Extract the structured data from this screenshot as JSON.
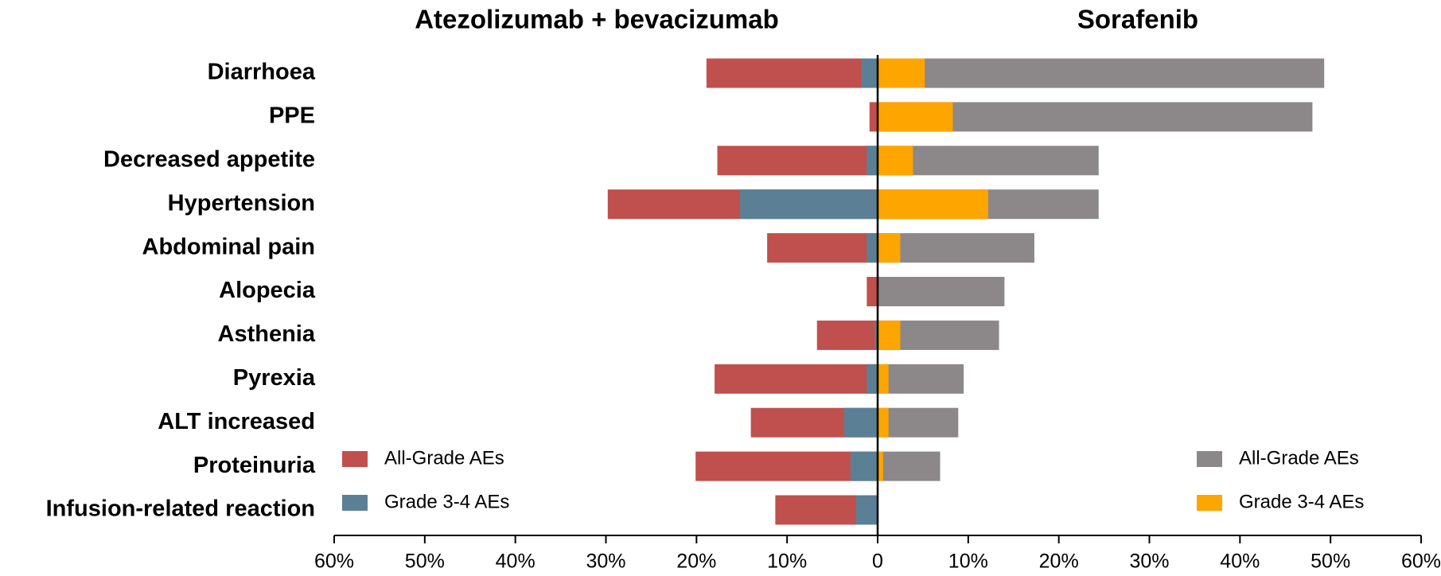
{
  "chart_data": {
    "type": "butterfly",
    "categories": [
      "Diarrhoea",
      "PPE",
      "Decreased appetite",
      "Hypertension",
      "Abdominal pain",
      "Alopecia",
      "Asthenia",
      "Pyrexia",
      "ALT increased",
      "Proteinuria",
      "Infusion-related reaction"
    ],
    "xlim": [
      -60,
      60
    ],
    "xticks": [
      {
        "value": -60,
        "label": "60%"
      },
      {
        "value": -50,
        "label": "50%"
      },
      {
        "value": -40,
        "label": "40%"
      },
      {
        "value": -30,
        "label": "30%"
      },
      {
        "value": -20,
        "label": "20%"
      },
      {
        "value": -10,
        "label": "10%"
      },
      0,
      {
        "value": 10,
        "label": "10%"
      },
      {
        "value": 20,
        "label": "20%"
      },
      {
        "value": 30,
        "label": "30%"
      },
      {
        "value": 40,
        "label": "40%"
      },
      {
        "value": 50,
        "label": "50%"
      },
      {
        "value": 60,
        "label": "60%"
      }
    ],
    "panels": [
      {
        "title": "Atezolizumab + bevacizumab",
        "direction": "left",
        "legend": "lower left",
        "series": [
          {
            "name": "All-Grade AEs",
            "color": "#c0504d",
            "values": [
              18.9,
              0.9,
              17.7,
              29.8,
              12.2,
              1.2,
              6.7,
              18.0,
              14.0,
              20.1,
              11.3
            ]
          },
          {
            "name": "Grade 3-4 AEs",
            "color": "#5b8096",
            "values": [
              1.8,
              0,
              1.2,
              15.2,
              1.2,
              0,
              0.3,
              1.2,
              3.7,
              3.0,
              2.4
            ]
          }
        ]
      },
      {
        "title": "Sorafenib",
        "direction": "right",
        "legend": "lower right",
        "series": [
          {
            "name": "All-Grade AEs",
            "color": "#8c8789",
            "values": [
              49.3,
              48.0,
              24.4,
              24.4,
              17.3,
              14.0,
              13.4,
              9.5,
              8.9,
              6.9,
              0
            ]
          },
          {
            "name": "Grade 3-4 AEs",
            "color": "#ffa500",
            "values": [
              5.2,
              8.3,
              3.9,
              12.2,
              2.5,
              0,
              2.5,
              1.2,
              1.2,
              0.6,
              0
            ]
          }
        ]
      }
    ]
  }
}
